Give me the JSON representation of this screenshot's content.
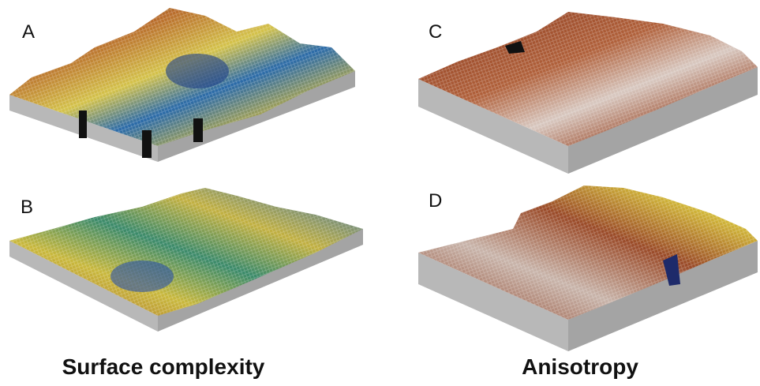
{
  "panels": [
    {
      "label": "A"
    },
    {
      "label": "B"
    },
    {
      "label": "C"
    },
    {
      "label": "D"
    }
  ],
  "captions": [
    "Surface complexity",
    "Anisotropy"
  ]
}
